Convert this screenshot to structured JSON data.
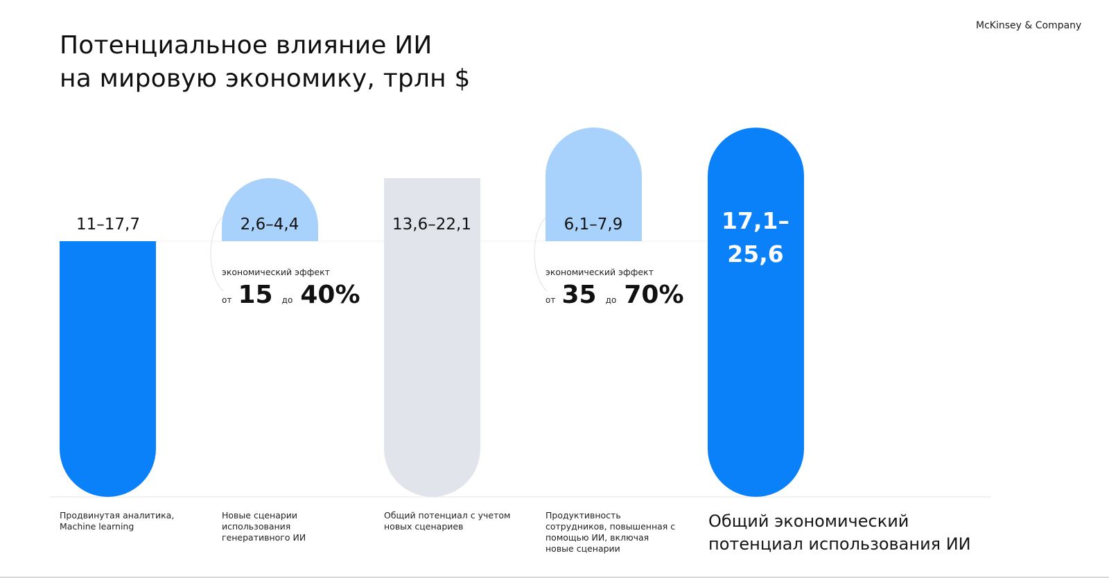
{
  "header": {
    "title_line1": "Потенциальное влияние ИИ",
    "title_line2": "на мировую экономику, трлн $",
    "brand": "McKinsey & Company"
  },
  "colors": {
    "blue": "#0a80f9",
    "light_blue": "#a8d1fb",
    "gray": "#e1e4ea"
  },
  "chart_data": {
    "type": "bar",
    "title": "Потенциальное влияние ИИ на мировую экономику, трлн $",
    "categories": [
      "Продвинутая аналитика,\nMachine learning",
      "Новые сценарии\nиспользования\nгенеративного ИИ",
      "Общий потенциал с учетом\nновых сценариев",
      "Продуктивность\nсотрудников, повышенная с\nпомощью ИИ, включая\nновые сценарии",
      "Общий экономический\nпотенциал использования ИИ"
    ],
    "bars": [
      {
        "label": "11–17,7",
        "low": 11,
        "high": 17.7,
        "kind": "base",
        "color": "#0a80f9"
      },
      {
        "label": "2,6–4,4",
        "low": 2.6,
        "high": 4.4,
        "kind": "increment",
        "color": "#a8d1fb"
      },
      {
        "label": "13,6–22,1",
        "low": 13.6,
        "high": 22.1,
        "kind": "total",
        "color": "#e1e4ea"
      },
      {
        "label": "6,1–7,9",
        "low": 6.1,
        "high": 7.9,
        "kind": "increment",
        "color": "#a8d1fb"
      },
      {
        "label_line1": "17,1–",
        "label_line2": "25,6",
        "low": 17.1,
        "high": 25.6,
        "kind": "grand_total",
        "color": "#0a80f9"
      }
    ],
    "effects": [
      {
        "caption": "экономический эффект",
        "from_word": "от",
        "from": "15",
        "to_word": "до",
        "to": "40%"
      },
      {
        "caption": "экономический эффект",
        "from_word": "от",
        "from": "35",
        "to_word": "до",
        "to": "70%"
      }
    ]
  }
}
